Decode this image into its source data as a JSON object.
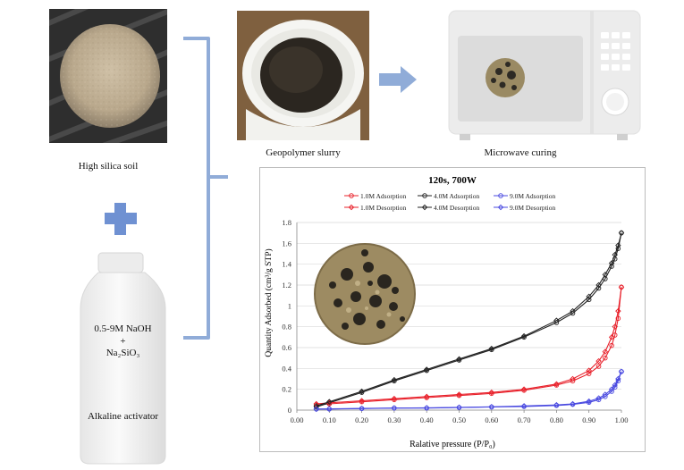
{
  "labels": {
    "soil": "High silica soil",
    "slurry": "Geopolymer slurry",
    "microwave": "Microwave curing",
    "activator_line1": "0.5-9M NaOH",
    "activator_plus": "+",
    "activator_line2": "Na₂SiO₃",
    "activator": "Alkaline activator"
  },
  "chart_data": {
    "type": "line",
    "title": "120s, 700W",
    "xlabel": "Ralative pressure (P/P₀)",
    "ylabel": "Quantity Adsorbed (cm³/g STP)",
    "xlim": [
      0,
      1
    ],
    "ylim": [
      0,
      1.8
    ],
    "xticks": [
      "0.00",
      "0.10",
      "0.20",
      "0.30",
      "0.40",
      "0.50",
      "0.60",
      "0.70",
      "0.80",
      "0.90",
      "1.00"
    ],
    "yticks": [
      "0",
      "0.2",
      "0.4",
      "0.6",
      "0.8",
      "1",
      "1.2",
      "1.4",
      "1.6",
      "1.8"
    ],
    "legend_position": "top",
    "series": [
      {
        "name": "1.0M Adsorption",
        "color": "#e8202a",
        "marker": "circle",
        "x": [
          0.06,
          0.1,
          0.2,
          0.3,
          0.4,
          0.5,
          0.6,
          0.7,
          0.8,
          0.85,
          0.9,
          0.93,
          0.95,
          0.97,
          0.98,
          0.99,
          1.0
        ],
        "y": [
          0.05,
          0.06,
          0.08,
          0.1,
          0.12,
          0.14,
          0.16,
          0.19,
          0.24,
          0.28,
          0.35,
          0.42,
          0.5,
          0.62,
          0.72,
          0.88,
          1.18
        ]
      },
      {
        "name": "4.0M Adsorption",
        "color": "#222222",
        "marker": "circle",
        "x": [
          0.06,
          0.1,
          0.2,
          0.3,
          0.4,
          0.5,
          0.6,
          0.7,
          0.8,
          0.85,
          0.9,
          0.93,
          0.95,
          0.97,
          0.98,
          0.99,
          1.0
        ],
        "y": [
          0.03,
          0.07,
          0.17,
          0.28,
          0.38,
          0.48,
          0.58,
          0.7,
          0.84,
          0.93,
          1.06,
          1.17,
          1.26,
          1.38,
          1.45,
          1.55,
          1.7
        ]
      },
      {
        "name": "9.0M Adsorption",
        "color": "#4a4ae0",
        "marker": "circle",
        "x": [
          0.06,
          0.1,
          0.2,
          0.3,
          0.4,
          0.5,
          0.6,
          0.7,
          0.8,
          0.85,
          0.9,
          0.93,
          0.95,
          0.97,
          0.98,
          0.99,
          1.0
        ],
        "y": [
          0.01,
          0.01,
          0.015,
          0.02,
          0.02,
          0.025,
          0.03,
          0.035,
          0.045,
          0.055,
          0.075,
          0.1,
          0.13,
          0.18,
          0.22,
          0.28,
          0.37
        ]
      },
      {
        "name": "1.0M Desorption",
        "color": "#e8202a",
        "marker": "diamond",
        "x": [
          1.0,
          0.99,
          0.98,
          0.97,
          0.95,
          0.93,
          0.9,
          0.85,
          0.8,
          0.7,
          0.6,
          0.5,
          0.4,
          0.3,
          0.2,
          0.1,
          0.06
        ],
        "y": [
          1.18,
          0.95,
          0.8,
          0.7,
          0.56,
          0.47,
          0.38,
          0.3,
          0.25,
          0.2,
          0.17,
          0.15,
          0.13,
          0.11,
          0.09,
          0.07,
          0.06
        ]
      },
      {
        "name": "4.0M Desorption",
        "color": "#222222",
        "marker": "diamond",
        "x": [
          1.0,
          0.99,
          0.98,
          0.97,
          0.95,
          0.93,
          0.9,
          0.85,
          0.8,
          0.7,
          0.6,
          0.5,
          0.4,
          0.3,
          0.2,
          0.1,
          0.06
        ],
        "y": [
          1.7,
          1.58,
          1.49,
          1.41,
          1.3,
          1.2,
          1.09,
          0.95,
          0.86,
          0.71,
          0.59,
          0.49,
          0.39,
          0.29,
          0.18,
          0.08,
          0.04
        ]
      },
      {
        "name": "9.0M Desorption",
        "color": "#4a4ae0",
        "marker": "diamond",
        "x": [
          1.0,
          0.99,
          0.98,
          0.97,
          0.95,
          0.93,
          0.9,
          0.85,
          0.8,
          0.7,
          0.6,
          0.5,
          0.4,
          0.3,
          0.2,
          0.1,
          0.06
        ],
        "y": [
          0.37,
          0.3,
          0.24,
          0.2,
          0.15,
          0.115,
          0.085,
          0.06,
          0.05,
          0.04,
          0.032,
          0.027,
          0.022,
          0.02,
          0.016,
          0.012,
          0.01
        ]
      }
    ]
  },
  "colors": {
    "arrow": "#90acd8",
    "bracket": "#90acd8",
    "plus": "#6f91d2"
  }
}
